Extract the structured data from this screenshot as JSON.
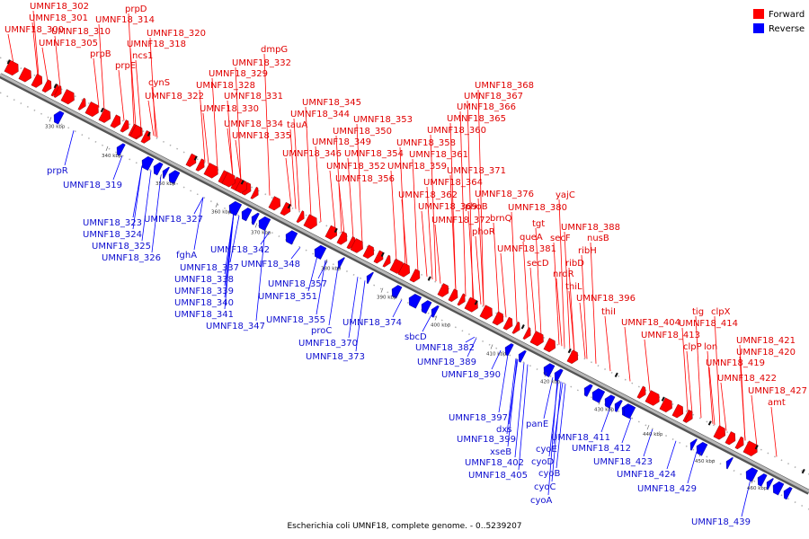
{
  "caption": "Escherichia coli UMNF18, complete genome. - 0..5239207",
  "legend": {
    "forward_label": "Forward",
    "reverse_label": "Reverse",
    "forward_color": "#ff0000",
    "reverse_color": "#0000ff"
  },
  "ticks": [
    "330 kbp",
    "340 kbp",
    "350 kbp",
    "360 kbp",
    "370 kbp",
    "380 kbp",
    "390 kbp",
    "400 kbp",
    "410 kbp",
    "420 kbp",
    "430 kbp",
    "440 kbp",
    "450 kbp",
    "460 kbp"
  ],
  "forward_genes": [
    "UMNF18_302",
    "UMNF18_301",
    "UMNF18_300",
    "UMNF18_310",
    "UMNF18_305",
    "prpD",
    "UMNF18_314",
    "UMNF18_320",
    "UMNF18_318",
    "prpB",
    "ncs1",
    "prpE",
    "cynS",
    "UMNF18_322",
    "dmpG",
    "UMNF18_332",
    "UMNF18_329",
    "UMNF18_328",
    "UMNF18_331",
    "UMNF18_330",
    "UMNF18_334",
    "UMNF18_335",
    "UMNF18_345",
    "UMNF18_344",
    "tauA",
    "UMNF18_353",
    "UMNF18_350",
    "UMNF18_349",
    "UMNF18_346",
    "UMNF18_354",
    "UMNF18_352",
    "UMNF18_356",
    "UMNF18_368",
    "UMNF18_367",
    "UMNF18_366",
    "UMNF18_365",
    "UMNF18_360",
    "UMNF18_358",
    "UMNF18_361",
    "UMNF18_359",
    "UMNF18_371",
    "UMNF18_364",
    "UMNF18_362",
    "UMNF18_376",
    "yajC",
    "UMNF18_369",
    "phoB",
    "UMNF18_380",
    "brnQ",
    "UMNF18_372",
    "tgt",
    "phoR",
    "UMNF18_388",
    "queA",
    "secF",
    "nusB",
    "UMNF18_381",
    "ribH",
    "secD",
    "ribD",
    "nrdR",
    "thiL",
    "UMNF18_396",
    "thiI",
    "tig",
    "clpX",
    "UMNF18_404",
    "UMNF18_414",
    "UMNF18_413",
    "clpP",
    "lon",
    "UMNF18_421",
    "UMNF18_420",
    "UMNF18_419",
    "UMNF18_422",
    "UMNF18_427",
    "amt"
  ],
  "reverse_genes": [
    "prpR",
    "UMNF18_319",
    "UMNF18_323",
    "UMNF18_327",
    "UMNF18_324",
    "UMNF18_325",
    "UMNF18_326",
    "fghA",
    "UMNF18_342",
    "UMNF18_337",
    "UMNF18_348",
    "UMNF18_338",
    "UMNF18_339",
    "UMNF18_340",
    "UMNF18_341",
    "UMNF18_357",
    "UMNF18_351",
    "UMNF18_347",
    "UMNF18_355",
    "proC",
    "UMNF18_374",
    "UMNF18_370",
    "sbcD",
    "UMNF18_373",
    "UMNF18_382",
    "UMNF18_389",
    "UMNF18_390",
    "UMNF18_397",
    "dxs",
    "panE",
    "UMNF18_399",
    "UMNF18_411",
    "cyoE",
    "xseB",
    "UMNF18_412",
    "UMNF18_402",
    "cyoD",
    "UMNF18_423",
    "UMNF18_405",
    "cyoB",
    "UMNF18_424",
    "cyoC",
    "UMNF18_429",
    "cyoA",
    "UMNF18_439"
  ]
}
